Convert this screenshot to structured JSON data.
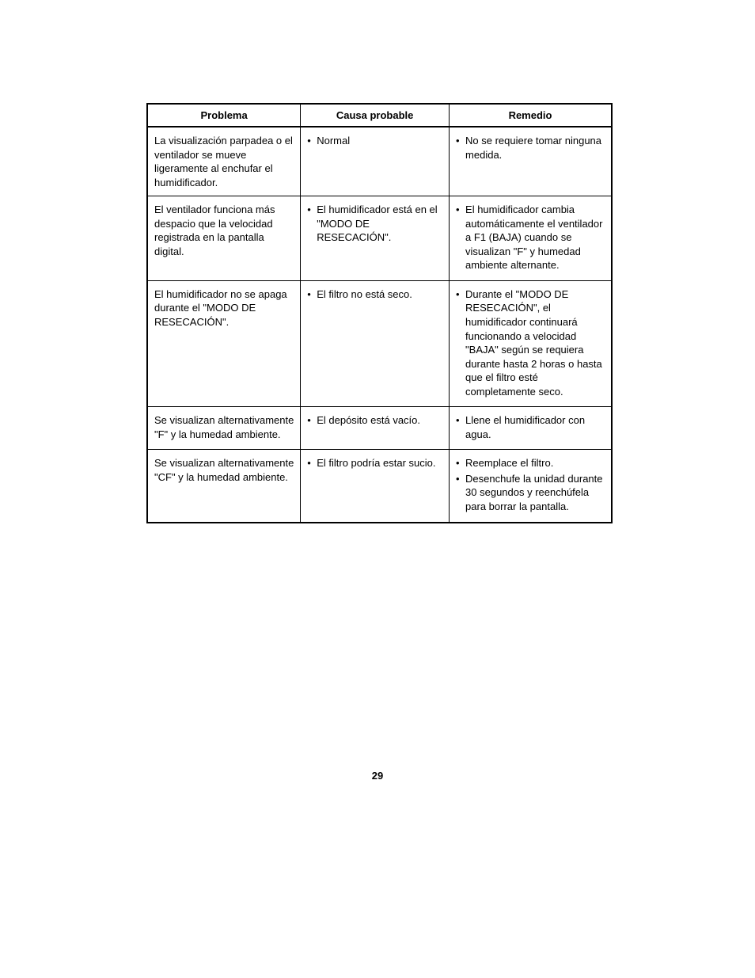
{
  "table": {
    "headers": {
      "problem": "Problema",
      "cause": "Causa probable",
      "remedy": "Remedio"
    },
    "rows": [
      {
        "problem": "La visualización parpadea o el ventilador se mueve ligeramente al enchufar el humidificador.",
        "causes": [
          "Normal"
        ],
        "remedies": [
          "No se requiere tomar ninguna medida."
        ]
      },
      {
        "problem": "El ventilador funciona más despacio que la velocidad registrada en la pantalla digital.",
        "causes": [
          "El humidificador está en el \"MODO DE RESECACIÓN\"."
        ],
        "remedies": [
          "El humidificador cambia automáticamente el ventilador a F1 (BAJA) cuando se visualizan \"F\" y humedad ambiente alternante."
        ]
      },
      {
        "problem": "El humidificador no se apaga durante el \"MODO DE RESECACIÓN\".",
        "causes": [
          "El filtro no está seco."
        ],
        "remedies": [
          "Durante el \"MODO DE RESECACIÓN\", el humidificador continuará funcionando a velocidad \"BAJA\" según se requiera durante hasta 2 horas o hasta que el filtro esté completamente seco."
        ]
      },
      {
        "problem": "Se visualizan alternativamente \"F\" y la humedad ambiente.",
        "causes": [
          "El depósito está vacío."
        ],
        "remedies": [
          "Llene el humidificador con agua."
        ]
      },
      {
        "problem": "Se visualizan alternativamente \"CF\" y la humedad ambiente.",
        "causes": [
          "El filtro podría estar sucio."
        ],
        "remedies": [
          "Reemplace el filtro.",
          "Desenchufe la unidad durante 30 segundos y reenchúfela para borrar la pantalla."
        ]
      }
    ]
  },
  "pageNumber": "29",
  "styling": {
    "background_color": "#ffffff",
    "border_color": "#000000",
    "text_color": "#000000",
    "header_fontsize": 13,
    "cell_fontsize": 13,
    "header_fontweight": "bold",
    "outer_border_width": 2,
    "inner_border_width": 1
  }
}
